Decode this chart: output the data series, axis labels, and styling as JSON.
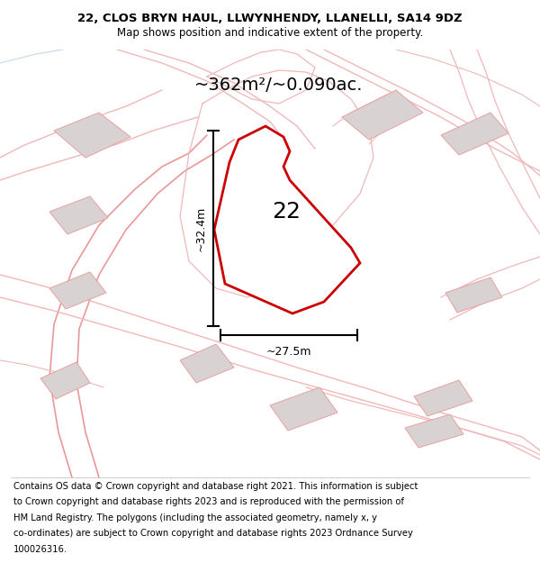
{
  "title_line1": "22, CLOS BRYN HAUL, LLWYNHENDY, LLANELLI, SA14 9DZ",
  "title_line2": "Map shows position and indicative extent of the property.",
  "area_text": "~362m²/~0.090ac.",
  "width_label": "~27.5m",
  "height_label": "~32.4m",
  "property_number": "22",
  "footer_lines": [
    "Contains OS data © Crown copyright and database right 2021. This information is subject",
    "to Crown copyright and database rights 2023 and is reproduced with the permission of",
    "HM Land Registry. The polygons (including the associated geometry, namely x, y",
    "co-ordinates) are subject to Crown copyright and database rights 2023 Ordnance Survey",
    "100026316."
  ],
  "map_bg": "#f8f4f4",
  "property_fill": "#ffffff",
  "property_edge": "#cc0000",
  "bldg_fill": "#d8d2d2",
  "bldg_edge": "#e8a0a0",
  "road_color": "#f0b8b8",
  "road_color2": "#e89898",
  "blue_road": "#b0c8e0",
  "title_fontsize": 9.5,
  "subtitle_fontsize": 8.5,
  "area_fontsize": 14,
  "number_fontsize": 18,
  "dim_fontsize": 9,
  "footer_fontsize": 7.2
}
